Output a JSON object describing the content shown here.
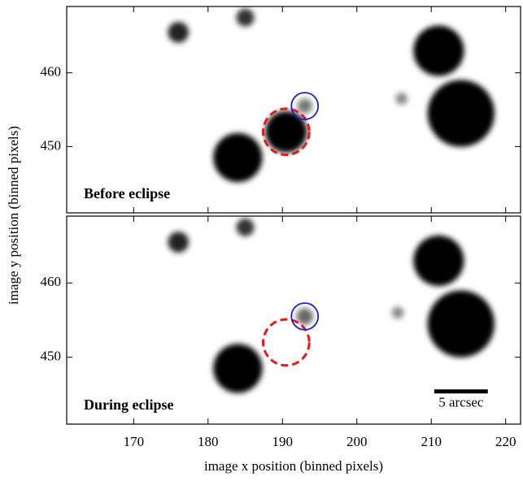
{
  "chart_data": [
    {
      "type": "image",
      "label": "Before eclipse",
      "ylabel": "image y position (binned pixels)",
      "xlim": [
        161,
        222
      ],
      "ylim": [
        441,
        469
      ],
      "xticks": [
        170,
        180,
        190,
        200,
        210,
        220
      ],
      "yticks": [
        450,
        460
      ],
      "sources": [
        {
          "x": 184,
          "y": 448.5,
          "r": 3.3,
          "color": "#000000"
        },
        {
          "x": 190.5,
          "y": 452,
          "r": 2.8,
          "color": "#000000"
        },
        {
          "x": 193,
          "y": 455.5,
          "r": 1.0,
          "color": "#777777"
        },
        {
          "x": 176,
          "y": 465.5,
          "r": 1.4,
          "color": "#222222"
        },
        {
          "x": 185,
          "y": 467.5,
          "r": 1.2,
          "color": "#333333"
        },
        {
          "x": 211,
          "y": 463,
          "r": 3.4,
          "color": "#000000"
        },
        {
          "x": 214,
          "y": 454.5,
          "r": 4.5,
          "color": "#000000"
        },
        {
          "x": 206,
          "y": 456.5,
          "r": 0.8,
          "color": "#888888"
        }
      ],
      "circles": [
        {
          "x": 190.5,
          "y": 452,
          "r": 3.1,
          "color": "#e41a1c",
          "dashed": true
        },
        {
          "x": 193,
          "y": 455.5,
          "r": 1.8,
          "color": "#1f1fd6",
          "dashed": false
        }
      ]
    },
    {
      "type": "image",
      "label": "During eclipse",
      "xlabel": "image x position (binned pixels)",
      "xlim": [
        161,
        222
      ],
      "ylim": [
        441,
        469
      ],
      "xticks": [
        170,
        180,
        190,
        200,
        210,
        220
      ],
      "yticks": [
        450,
        460
      ],
      "sources": [
        {
          "x": 184,
          "y": 448.5,
          "r": 3.3,
          "color": "#000000"
        },
        {
          "x": 193,
          "y": 455.5,
          "r": 1.1,
          "color": "#666666"
        },
        {
          "x": 176,
          "y": 465.5,
          "r": 1.4,
          "color": "#222222"
        },
        {
          "x": 185,
          "y": 467.5,
          "r": 1.2,
          "color": "#333333"
        },
        {
          "x": 211,
          "y": 463,
          "r": 3.4,
          "color": "#000000"
        },
        {
          "x": 214,
          "y": 454.5,
          "r": 4.5,
          "color": "#000000"
        },
        {
          "x": 205.5,
          "y": 456,
          "r": 0.8,
          "color": "#888888"
        }
      ],
      "circles": [
        {
          "x": 190.5,
          "y": 452,
          "r": 3.1,
          "color": "#e41a1c",
          "dashed": true
        },
        {
          "x": 193,
          "y": 455.5,
          "r": 1.8,
          "color": "#1f1fd6",
          "dashed": false
        }
      ],
      "scalebar": {
        "x": [
          210.4,
          217.6
        ],
        "y": 445.4,
        "label": "5 arcsec"
      }
    }
  ]
}
